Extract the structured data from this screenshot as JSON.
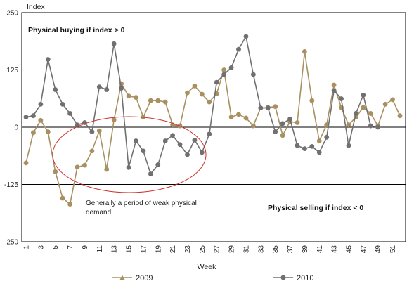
{
  "chart_data": {
    "type": "line",
    "ylabel": "Index",
    "xlabel": "Week",
    "ylim": [
      -250,
      250
    ],
    "yticks": [
      250,
      125,
      0,
      -125,
      -250
    ],
    "grid": "horizontal",
    "legend_position": "bottom",
    "x": [
      1,
      2,
      3,
      4,
      5,
      6,
      7,
      8,
      9,
      10,
      11,
      12,
      13,
      14,
      15,
      16,
      17,
      18,
      19,
      20,
      21,
      22,
      23,
      24,
      25,
      26,
      27,
      28,
      29,
      30,
      31,
      32,
      33,
      34,
      35,
      36,
      37,
      38,
      39,
      40,
      41,
      42,
      43,
      44,
      45,
      46,
      47,
      48,
      49,
      50,
      51,
      52
    ],
    "x_tick_labels": [
      "1",
      "3",
      "5",
      "7",
      "9",
      "11",
      "13",
      "15",
      "17",
      "19",
      "21",
      "23",
      "25",
      "27",
      "29",
      "31",
      "33",
      "35",
      "37",
      "39",
      "41",
      "43",
      "45",
      "47",
      "49",
      "51"
    ],
    "series": [
      {
        "name": "2009",
        "color": "#a89060",
        "values": [
          -78,
          -12,
          15,
          -10,
          -97,
          -155,
          -168,
          -87,
          -83,
          -52,
          -8,
          -92,
          16,
          95,
          68,
          65,
          22,
          58,
          58,
          55,
          5,
          3,
          75,
          90,
          72,
          55,
          73,
          125,
          22,
          28,
          20,
          3,
          42,
          43,
          45,
          -18,
          12,
          10,
          165,
          58,
          -30,
          5,
          92,
          43,
          5,
          22,
          43,
          30,
          3,
          50,
          60,
          25
        ]
      },
      {
        "name": "2010",
        "color": "#707070",
        "values": [
          22,
          25,
          50,
          148,
          82,
          50,
          30,
          5,
          10,
          -10,
          88,
          82,
          182,
          85,
          -88,
          -30,
          -52,
          -102,
          -82,
          -30,
          -18,
          -38,
          -60,
          -28,
          -55,
          -15,
          98,
          115,
          130,
          170,
          198,
          115,
          42,
          42,
          -10,
          8,
          18,
          -40,
          -47,
          -42,
          -55,
          -22,
          80,
          62,
          -40,
          30,
          70,
          3,
          0,
          null,
          null,
          null
        ]
      }
    ],
    "annotations": {
      "top_left": "Physical buying if index > 0",
      "bottom_right": "Physical selling if index < 0",
      "ellipse_line1": "Generally a period of weak physical",
      "ellipse_line2": "demand"
    }
  }
}
